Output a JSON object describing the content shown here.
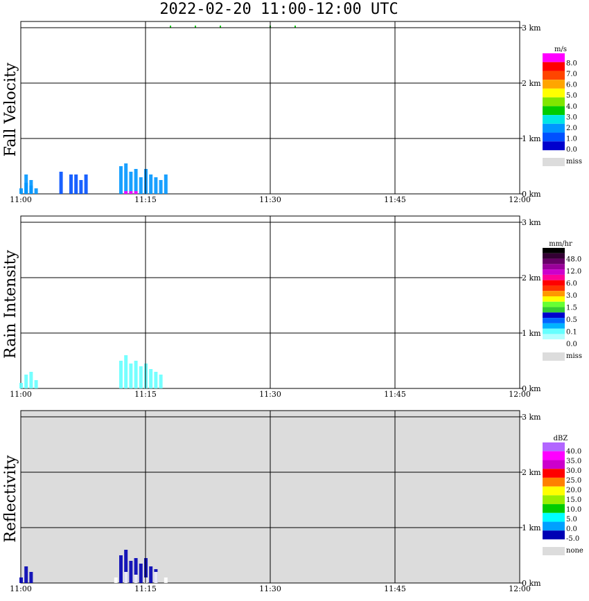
{
  "title": "2022-02-20  11:00-12:00 UTC",
  "chart_data": [
    {
      "type": "heatmap",
      "title": "Fall Velocity",
      "x_ticks": [
        "11:00",
        "11:15",
        "11:30",
        "11:45",
        "12:00"
      ],
      "y_ticks": [
        "0 km",
        "1 km",
        "2 km",
        "3 km"
      ],
      "xlim": [
        "11:00",
        "12:00"
      ],
      "ylim_km": [
        0,
        3.0
      ],
      "background": "#ffffff",
      "colorbar": {
        "unit": "m/s",
        "colors": [
          "#0000cd",
          "#0050ff",
          "#0096ff",
          "#00e6e6",
          "#00cc00",
          "#80e600",
          "#ffff00",
          "#ffa500",
          "#ff4500",
          "#ff0000",
          "#ff00ff"
        ],
        "labels": [
          "0.0",
          "1.0",
          "2.0",
          "3.0",
          "4.0",
          "5.0",
          "6.0",
          "7.0",
          "8.0"
        ],
        "miss_label": "miss"
      },
      "echoes": [
        {
          "t": [
            11.0,
            11.01,
            11.01,
            11.02,
            11.02,
            11.03
          ],
          "h": [
            0.1,
            0.2,
            0.35,
            0.15,
            0.25,
            0.1
          ],
          "color": "#0096ff"
        },
        {
          "t": [
            11.08,
            11.1,
            11.11,
            11.12,
            11.13
          ],
          "h": [
            0.4,
            0.35,
            0.35,
            0.25,
            0.35
          ],
          "color": "#0050ff"
        },
        {
          "t": [
            11.2,
            11.21,
            11.22,
            11.23,
            11.24,
            11.25,
            11.26,
            11.27,
            11.28,
            11.29
          ],
          "h": [
            0.5,
            0.55,
            0.4,
            0.45,
            0.3,
            0.45,
            0.35,
            0.3,
            0.25,
            0.35
          ],
          "color": "#0096ff"
        },
        {
          "t": [
            11.21,
            11.22,
            11.23
          ],
          "h": [
            0.05,
            0.05,
            0.05
          ],
          "color": "#ff00ff"
        },
        {
          "t": [
            11.3,
            11.35,
            11.4,
            11.5,
            11.55
          ],
          "h": [
            3.0,
            3.0,
            3.0,
            3.0,
            3.0
          ],
          "color": "#00cc00"
        }
      ]
    },
    {
      "type": "heatmap",
      "title": "Rain Intensity",
      "x_ticks": [
        "11:00",
        "11:15",
        "11:30",
        "11:45",
        "12:00"
      ],
      "y_ticks": [
        "0 km",
        "1 km",
        "2 km",
        "3 km"
      ],
      "xlim": [
        "11:00",
        "12:00"
      ],
      "ylim_km": [
        0,
        3.0
      ],
      "background": "#ffffff",
      "colorbar": {
        "unit": "mm/hr",
        "colors": [
          "#ffffff",
          "#b3ffff",
          "#66ffff",
          "#00b3ff",
          "#0066ff",
          "#0000cc",
          "#33cc33",
          "#66ff33",
          "#ffff00",
          "#ff9900",
          "#ff3300",
          "#ff0000",
          "#ff0099",
          "#cc00cc",
          "#990099",
          "#660066",
          "#330033",
          "#000000"
        ],
        "labels": [
          "0.0",
          "0.1",
          "0.5",
          "1.5",
          "3.0",
          "6.0",
          "12.0",
          "48.0"
        ],
        "miss_label": "miss"
      },
      "echoes": [
        {
          "t": [
            11.0,
            11.01,
            11.02,
            11.03
          ],
          "h": [
            0.1,
            0.25,
            0.3,
            0.15
          ],
          "color": "#66ffff"
        },
        {
          "t": [
            11.2,
            11.21,
            11.22,
            11.23,
            11.24,
            11.25,
            11.26,
            11.27,
            11.28
          ],
          "h": [
            0.5,
            0.6,
            0.45,
            0.5,
            0.4,
            0.45,
            0.35,
            0.3,
            0.25
          ],
          "color": "#66ffff"
        }
      ]
    },
    {
      "type": "heatmap",
      "title": "Reflectivity",
      "x_ticks": [
        "11:00",
        "11:15",
        "11:30",
        "11:45",
        "12:00"
      ],
      "y_ticks": [
        "0 km",
        "1 km",
        "2 km",
        "3 km"
      ],
      "xlim": [
        "11:00",
        "12:00"
      ],
      "ylim_km": [
        0,
        3.0
      ],
      "background": "#dcdcdc",
      "colorbar": {
        "unit": "dBZ",
        "colors": [
          "#0000b4",
          "#00a0ff",
          "#00ffff",
          "#00cc00",
          "#99ee00",
          "#ffff00",
          "#ff8000",
          "#ff0000",
          "#cc00cc",
          "#ff00ff",
          "#b266ff"
        ],
        "labels": [
          "-5.0",
          "0.0",
          "5.0",
          "10.0",
          "15.0",
          "20.0",
          "25.0",
          "30.0",
          "35.0",
          "40.0"
        ],
        "miss_label": "none"
      },
      "echoes": [
        {
          "t": [
            11.0,
            11.01,
            11.02
          ],
          "h": [
            0.1,
            0.3,
            0.2
          ],
          "color": "#0000b4"
        },
        {
          "t": [
            11.2,
            11.21,
            11.22,
            11.23,
            11.24,
            11.25,
            11.26,
            11.27
          ],
          "h": [
            0.5,
            0.6,
            0.4,
            0.45,
            0.35,
            0.45,
            0.3,
            0.25
          ],
          "color": "#0000b4"
        },
        {
          "t": [
            11.19,
            11.21,
            11.23,
            11.25,
            11.27,
            11.29
          ],
          "h": [
            0.1,
            0.2,
            0.15,
            0.1,
            0.2,
            0.1
          ],
          "color": "#ffffff"
        }
      ]
    }
  ]
}
